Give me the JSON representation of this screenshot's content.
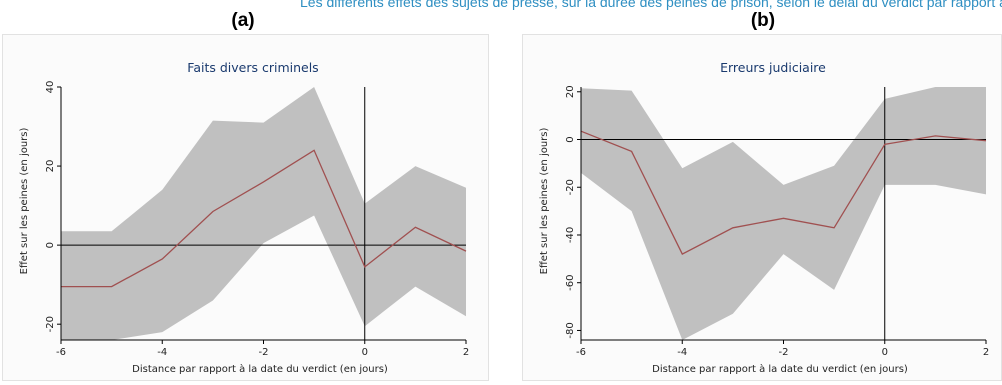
{
  "caption": "Les différents effets des sujets de presse, sur la durée des peines de prison, selon le délai du verdict par rapport à la date",
  "panels": [
    {
      "heading": "(a)"
    },
    {
      "heading": "(b)"
    }
  ],
  "colors": {
    "band": "#c0c0c0",
    "line": "#a05050",
    "axis": "#000000",
    "caption": "#2f8fc2"
  },
  "chart_data": [
    {
      "type": "line",
      "title": "Faits divers criminels",
      "xlabel": "Distance par rapport à la date du verdict (en jours)",
      "ylabel": "Effet sur les peines (en jours)",
      "xlim": [
        -6,
        2
      ],
      "ylim": [
        -24,
        40
      ],
      "xticks": [
        -6,
        -4,
        -2,
        0,
        2
      ],
      "yticks": [
        -20,
        0,
        20,
        40
      ],
      "x": [
        -6,
        -5,
        -4,
        -3,
        -2,
        -1,
        0,
        1,
        2
      ],
      "series": [
        {
          "role": "estimate",
          "values": [
            -10.5,
            -10.5,
            -3.5,
            8.5,
            16,
            24,
            -5.5,
            4.5,
            -1.5
          ]
        },
        {
          "role": "ci_upper",
          "values": [
            3.5,
            3.5,
            14,
            31.5,
            31,
            40,
            10.5,
            20,
            14.5
          ]
        },
        {
          "role": "ci_lower",
          "values": [
            -24,
            -24,
            -22,
            -14,
            0.5,
            7.5,
            -20.5,
            -10.5,
            -18
          ]
        }
      ],
      "reference_lines": {
        "x": 0,
        "y": 0
      },
      "grid": false
    },
    {
      "type": "line",
      "title": "Erreurs judiciaire",
      "xlabel": "Distance par rapport à la date du verdict (en jours)",
      "ylabel": "Effet sur les peines (en jours)",
      "xlim": [
        -6,
        2
      ],
      "ylim": [
        -84,
        22
      ],
      "xticks": [
        -6,
        -4,
        -2,
        0,
        2
      ],
      "yticks": [
        -80,
        -60,
        -40,
        -20,
        0,
        20
      ],
      "x": [
        -6,
        -5,
        -4,
        -3,
        -2,
        -1,
        0,
        1,
        2
      ],
      "series": [
        {
          "role": "estimate",
          "values": [
            3.5,
            -5,
            -48,
            -37,
            -33,
            -37,
            -2,
            1.5,
            -0.5
          ]
        },
        {
          "role": "ci_upper",
          "values": [
            21.5,
            20.5,
            -12,
            -1,
            -19,
            -11,
            17,
            22,
            22
          ]
        },
        {
          "role": "ci_lower",
          "values": [
            -14,
            -30,
            -84,
            -73,
            -48,
            -63,
            -19,
            -19,
            -23
          ]
        }
      ],
      "reference_lines": {
        "x": 0,
        "y": 0
      },
      "grid": false
    }
  ]
}
